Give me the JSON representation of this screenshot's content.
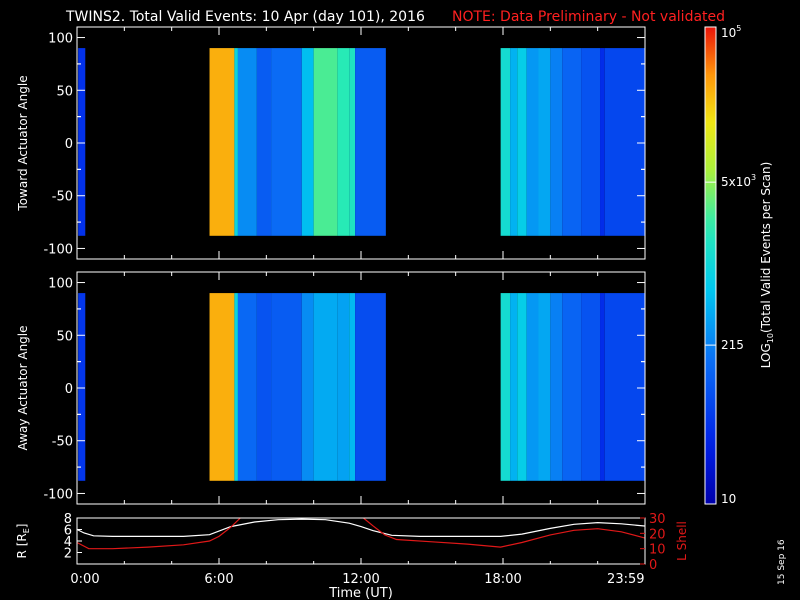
{
  "title": "TWINS2. Total Valid Events: 10 Apr (day 101), 2016",
  "note": "NOTE: Data Preliminary - Not validated",
  "date_stamp": "15 Sep 16",
  "colors": {
    "background": "#000000",
    "axes": "#ffffff",
    "note": "#ff2020",
    "ephem_r": "#ffffff",
    "ephem_l": "#e01818"
  },
  "chart_data": [
    {
      "type": "heatmap",
      "name": "toward",
      "ylabel": "Toward Actuator Angle",
      "yticks": [
        100,
        50,
        0,
        -50,
        -100
      ],
      "ylim": [
        -110,
        110
      ],
      "angle_range": [
        -88,
        90
      ],
      "xlim": [
        0,
        24
      ],
      "value_scale": "log",
      "value_range": [
        10,
        100000
      ],
      "columns": [
        {
          "t0": 0.05,
          "t1": 0.35,
          "value": 45
        },
        {
          "t0": 5.6,
          "t1": 6.65,
          "value": 30000
        },
        {
          "t0": 6.65,
          "t1": 6.8,
          "value": 900
        },
        {
          "t0": 6.8,
          "t1": 7.6,
          "value": 250
        },
        {
          "t0": 7.6,
          "t1": 8.2,
          "value": 110
        },
        {
          "t0": 8.2,
          "t1": 9.5,
          "value": 150
        },
        {
          "t0": 9.5,
          "t1": 10.0,
          "value": 550
        },
        {
          "t0": 10.0,
          "t1": 11.0,
          "value": 2800
        },
        {
          "t0": 11.0,
          "t1": 11.5,
          "value": 2000
        },
        {
          "t0": 11.5,
          "t1": 11.75,
          "value": 1600
        },
        {
          "t0": 11.75,
          "t1": 13.05,
          "value": 110
        },
        {
          "t0": 17.9,
          "t1": 18.3,
          "value": 1200
        },
        {
          "t0": 18.3,
          "t1": 18.6,
          "value": 450
        },
        {
          "t0": 18.6,
          "t1": 19.0,
          "value": 750
        },
        {
          "t0": 19.0,
          "t1": 19.5,
          "value": 300
        },
        {
          "t0": 19.5,
          "t1": 20.0,
          "value": 380
        },
        {
          "t0": 20.0,
          "t1": 20.5,
          "value": 210
        },
        {
          "t0": 20.5,
          "t1": 21.3,
          "value": 130
        },
        {
          "t0": 21.3,
          "t1": 22.1,
          "value": 90
        },
        {
          "t0": 22.1,
          "t1": 22.3,
          "value": 40
        },
        {
          "t0": 22.3,
          "t1": 23.98,
          "value": 70
        }
      ]
    },
    {
      "type": "heatmap",
      "name": "away",
      "ylabel": "Away Actuator Angle",
      "yticks": [
        100,
        50,
        0,
        -50,
        -100
      ],
      "ylim": [
        -110,
        110
      ],
      "angle_range": [
        -88,
        90
      ],
      "xlim": [
        0,
        24
      ],
      "value_scale": "log",
      "value_range": [
        10,
        100000
      ],
      "columns": [
        {
          "t0": 0.05,
          "t1": 0.35,
          "value": 50
        },
        {
          "t0": 5.6,
          "t1": 6.65,
          "value": 30000
        },
        {
          "t0": 6.65,
          "t1": 6.8,
          "value": 900
        },
        {
          "t0": 6.8,
          "t1": 7.6,
          "value": 140
        },
        {
          "t0": 7.6,
          "t1": 8.2,
          "value": 90
        },
        {
          "t0": 8.2,
          "t1": 9.5,
          "value": 110
        },
        {
          "t0": 9.5,
          "t1": 10.0,
          "value": 250
        },
        {
          "t0": 10.0,
          "t1": 11.0,
          "value": 400
        },
        {
          "t0": 11.0,
          "t1": 11.5,
          "value": 350
        },
        {
          "t0": 11.5,
          "t1": 11.75,
          "value": 500
        },
        {
          "t0": 11.75,
          "t1": 13.05,
          "value": 80
        },
        {
          "t0": 17.9,
          "t1": 18.3,
          "value": 1200
        },
        {
          "t0": 18.3,
          "t1": 18.6,
          "value": 450
        },
        {
          "t0": 18.6,
          "t1": 19.0,
          "value": 750
        },
        {
          "t0": 19.0,
          "t1": 19.5,
          "value": 300
        },
        {
          "t0": 19.5,
          "t1": 20.0,
          "value": 380
        },
        {
          "t0": 20.0,
          "t1": 20.5,
          "value": 210
        },
        {
          "t0": 20.5,
          "t1": 21.3,
          "value": 130
        },
        {
          "t0": 21.3,
          "t1": 22.1,
          "value": 90
        },
        {
          "t0": 22.1,
          "t1": 22.3,
          "value": 40
        },
        {
          "t0": 22.3,
          "t1": 23.98,
          "value": 70
        }
      ]
    },
    {
      "type": "line",
      "name": "ephemeris",
      "xlabel": "Time (UT)",
      "xtick_labels": [
        "0:00",
        "6:00",
        "12:00",
        "18:00",
        "23:59"
      ],
      "xtick_values": [
        0,
        6,
        12,
        18,
        23.98
      ],
      "xlim": [
        0,
        24
      ],
      "left_axis": {
        "label": "R [R",
        "label_sub": "E",
        "label_end": "]",
        "ticks": [
          8,
          6,
          4,
          2
        ],
        "ylim": [
          0,
          8
        ]
      },
      "right_axis": {
        "label": "L Shell",
        "ticks": [
          30,
          20,
          10,
          0
        ],
        "ylim": [
          0,
          30
        ]
      },
      "series": [
        {
          "axis": "left",
          "x": [
            0,
            0.3,
            0.7,
            1.5,
            3,
            4.5,
            5.6,
            6.5,
            7.5,
            8.5,
            9.5,
            10.5,
            11.5,
            12.0,
            12.5,
            13.3,
            14.5,
            16,
            17.9,
            18.8,
            20,
            21,
            22,
            23,
            23.98
          ],
          "y": [
            6.0,
            5.4,
            4.9,
            4.8,
            4.8,
            4.8,
            5.1,
            6.5,
            7.3,
            7.7,
            7.8,
            7.7,
            7.1,
            6.5,
            5.8,
            5.0,
            4.8,
            4.8,
            4.8,
            5.2,
            6.2,
            6.9,
            7.2,
            7.0,
            6.6
          ]
        },
        {
          "axis": "right",
          "x": [
            0,
            0.5,
            1.5,
            3,
            4.5,
            5.6,
            6.0,
            6.5,
            6.9
          ],
          "y": [
            14,
            10,
            10,
            11,
            12.5,
            15,
            18,
            24,
            30
          ]
        },
        {
          "axis": "right",
          "x": [
            12.1,
            12.5,
            13.0,
            13.5,
            15,
            16.5,
            17.9,
            18.8,
            20,
            21,
            22,
            23,
            23.98
          ],
          "y": [
            30,
            25,
            19,
            16,
            14.5,
            13,
            11,
            14,
            19,
            22,
            23,
            21,
            17
          ]
        }
      ]
    },
    {
      "type": "colorbar",
      "name": "colorbar",
      "label_pre": "LOG",
      "label_sub": "10",
      "label_post": "(Total Valid Events per Scan)",
      "scale": "log",
      "range": [
        10,
        100000
      ],
      "ticks": [
        {
          "value": 100000,
          "base": "10",
          "sup": "5"
        },
        {
          "value": 5000,
          "base": "5x10",
          "sup": "3"
        },
        {
          "value": 215,
          "base": "215",
          "sup": ""
        },
        {
          "value": 10,
          "base": "10",
          "sup": ""
        }
      ]
    }
  ]
}
